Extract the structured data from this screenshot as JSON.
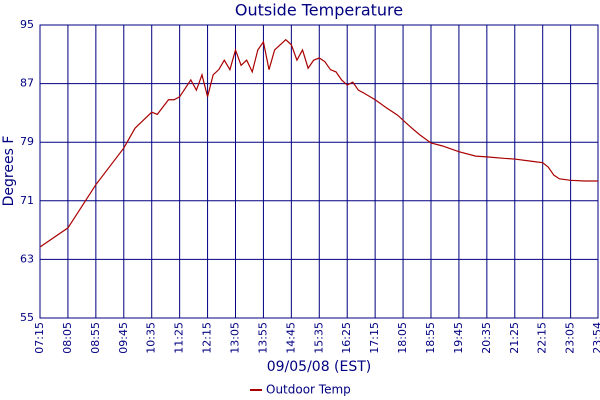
{
  "chart_data": {
    "type": "line",
    "title": "Outside Temperature",
    "x_label": "09/05/08 (EST)",
    "y_label": "Degrees F",
    "x": [
      "07:15",
      "08:05",
      "08:55",
      "09:45",
      "10:05",
      "10:35",
      "10:45",
      "11:05",
      "11:15",
      "11:25",
      "11:45",
      "11:55",
      "12:05",
      "12:15",
      "12:25",
      "12:35",
      "12:45",
      "12:55",
      "13:05",
      "13:15",
      "13:25",
      "13:35",
      "13:45",
      "13:55",
      "14:05",
      "14:15",
      "14:25",
      "14:35",
      "14:45",
      "14:55",
      "15:05",
      "15:15",
      "15:25",
      "15:35",
      "15:45",
      "15:55",
      "16:05",
      "16:15",
      "16:25",
      "16:35",
      "16:45",
      "16:55",
      "17:15",
      "17:35",
      "17:55",
      "18:15",
      "18:35",
      "18:55",
      "19:15",
      "19:45",
      "20:15",
      "20:35",
      "21:05",
      "21:25",
      "21:55",
      "22:15",
      "22:25",
      "22:35",
      "22:45",
      "23:05",
      "23:30",
      "23:54"
    ],
    "series": [
      {
        "name": "Outdoor Temp",
        "color": "#aa0000",
        "values": [
          64.7,
          67.3,
          73.2,
          78.2,
          80.9,
          83.1,
          82.8,
          84.8,
          84.8,
          85.2,
          87.5,
          86.1,
          88.2,
          85.2,
          88.2,
          88.9,
          90.2,
          88.9,
          91.6,
          89.5,
          90.2,
          88.6,
          91.6,
          92.7,
          88.9,
          91.6,
          92.3,
          93.0,
          92.3,
          90.2,
          91.6,
          89.1,
          90.2,
          90.5,
          90.0,
          88.9,
          88.6,
          87.5,
          86.8,
          87.2,
          86.1,
          85.7,
          84.8,
          83.7,
          82.7,
          81.3,
          80.0,
          78.9,
          78.5,
          77.7,
          77.1,
          77.0,
          76.8,
          76.7,
          76.4,
          76.2,
          75.6,
          74.5,
          74.0,
          73.8,
          73.7,
          73.7
        ]
      }
    ],
    "xlim": [
      "07:15",
      "23:54"
    ],
    "xticks": [
      "07:15",
      "08:05",
      "08:55",
      "09:45",
      "10:35",
      "11:25",
      "12:15",
      "13:05",
      "13:55",
      "14:45",
      "15:35",
      "16:25",
      "17:15",
      "18:05",
      "18:55",
      "19:45",
      "20:35",
      "21:25",
      "22:15",
      "23:05",
      "23:54"
    ],
    "ylim": [
      55,
      95
    ],
    "yticks": [
      55,
      63,
      71,
      79,
      87,
      95
    ],
    "grid": true
  }
}
